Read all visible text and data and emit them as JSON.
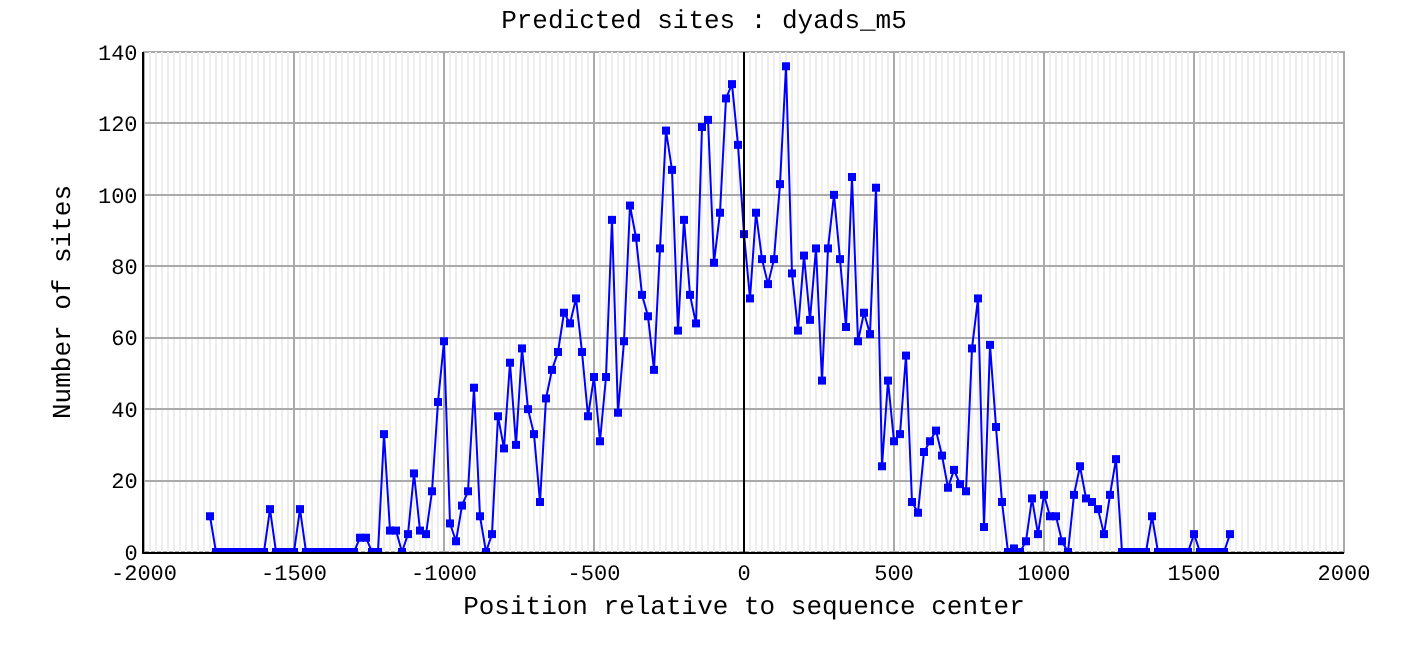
{
  "chart_data": {
    "type": "line",
    "title": "Predicted sites : dyads_m5",
    "xlabel": "Position relative to sequence center",
    "ylabel": "Number of sites",
    "x": [
      -1780,
      -1760,
      -1740,
      -1720,
      -1700,
      -1680,
      -1660,
      -1640,
      -1620,
      -1600,
      -1580,
      -1560,
      -1540,
      -1520,
      -1500,
      -1480,
      -1460,
      -1440,
      -1420,
      -1400,
      -1380,
      -1360,
      -1340,
      -1320,
      -1300,
      -1280,
      -1260,
      -1240,
      -1220,
      -1200,
      -1180,
      -1160,
      -1140,
      -1120,
      -1100,
      -1080,
      -1060,
      -1040,
      -1020,
      -1000,
      -980,
      -960,
      -940,
      -920,
      -900,
      -880,
      -860,
      -840,
      -820,
      -800,
      -780,
      -760,
      -740,
      -720,
      -700,
      -680,
      -660,
      -640,
      -620,
      -600,
      -580,
      -560,
      -540,
      -520,
      -500,
      -480,
      -460,
      -440,
      -420,
      -400,
      -380,
      -360,
      -340,
      -320,
      -300,
      -280,
      -260,
      -240,
      -220,
      -200,
      -180,
      -160,
      -140,
      -120,
      -100,
      -80,
      -60,
      -40,
      -20,
      0,
      20,
      40,
      60,
      80,
      100,
      120,
      140,
      160,
      180,
      200,
      220,
      240,
      260,
      280,
      300,
      320,
      340,
      360,
      380,
      400,
      420,
      440,
      460,
      480,
      500,
      520,
      540,
      560,
      580,
      600,
      620,
      640,
      660,
      680,
      700,
      720,
      740,
      760,
      780,
      800,
      820,
      840,
      860,
      880,
      900,
      920,
      940,
      960,
      980,
      1000,
      1020,
      1040,
      1060,
      1080,
      1100,
      1120,
      1140,
      1160,
      1180,
      1200,
      1220,
      1240,
      1260,
      1280,
      1300,
      1320,
      1340,
      1360,
      1380,
      1400,
      1420,
      1440,
      1460,
      1480,
      1500,
      1520,
      1540,
      1560,
      1580,
      1600,
      1620
    ],
    "series": [
      {
        "color": "#0000ff",
        "values": [
          10,
          0,
          0,
          0,
          0,
          0,
          0,
          0,
          0,
          0,
          12,
          0,
          0,
          0,
          0,
          12,
          0,
          0,
          0,
          0,
          0,
          0,
          0,
          0,
          0,
          4,
          4,
          0,
          0,
          33,
          6,
          6,
          0,
          5,
          22,
          6,
          5,
          17,
          42,
          59,
          8,
          3,
          13,
          17,
          46,
          10,
          0,
          5,
          38,
          29,
          53,
          30,
          57,
          40,
          33,
          14,
          43,
          51,
          56,
          67,
          64,
          71,
          56,
          38,
          49,
          31,
          49,
          93,
          39,
          59,
          97,
          88,
          72,
          66,
          51,
          85,
          118,
          107,
          62,
          93,
          72,
          64,
          119,
          121,
          81,
          95,
          127,
          131,
          114,
          89,
          71,
          95,
          82,
          75,
          82,
          103,
          136,
          78,
          62,
          83,
          65,
          85,
          48,
          85,
          100,
          82,
          63,
          105,
          59,
          67,
          61,
          102,
          24,
          48,
          31,
          33,
          55,
          14,
          11,
          28,
          31,
          34,
          27,
          18,
          23,
          19,
          17,
          57,
          71,
          7,
          58,
          35,
          14,
          0,
          1,
          0,
          3,
          15,
          5,
          16,
          10,
          10,
          3,
          0,
          16,
          24,
          15,
          14,
          12,
          5,
          16,
          26,
          0,
          0,
          0,
          0,
          0,
          10,
          0,
          0,
          0,
          0,
          0,
          0,
          5,
          0,
          0,
          0,
          0,
          0,
          5
        ]
      }
    ],
    "xlim": [
      -2000,
      2000
    ],
    "xticks": [
      -2000,
      -1500,
      -1000,
      -500,
      0,
      500,
      1000,
      1500,
      2000
    ],
    "ylim": [
      0,
      140
    ],
    "yticks": [
      0,
      20,
      40,
      60,
      80,
      100,
      120,
      140
    ],
    "ref_lines": [
      {
        "axis": "x",
        "value": 0,
        "color": "#000000"
      }
    ],
    "grid": true,
    "marker": "square",
    "line_style": "solid"
  }
}
